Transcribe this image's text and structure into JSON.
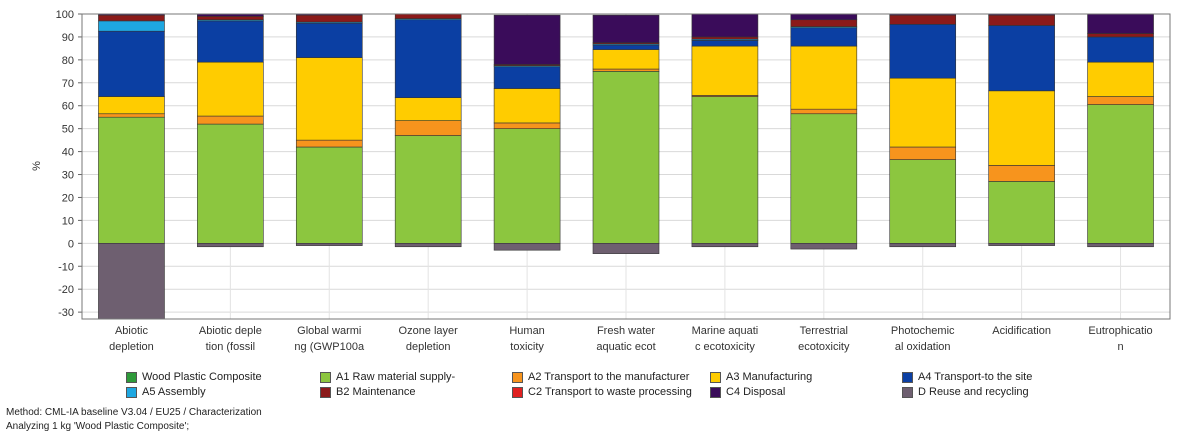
{
  "chart_data": {
    "type": "bar",
    "stacked": true,
    "title": "",
    "xlabel": "",
    "ylabel": "%",
    "ylim": [
      -33,
      100
    ],
    "yticks": [
      -30,
      -20,
      -10,
      0,
      10,
      20,
      30,
      40,
      50,
      60,
      70,
      80,
      90,
      100
    ],
    "grid": true,
    "legend_position": "bottom",
    "categories": [
      [
        "Abiotic",
        "depletion"
      ],
      [
        "Abiotic deple",
        "tion (fossil"
      ],
      [
        "Global warmi",
        "ng (GWP100a"
      ],
      [
        "Ozone layer",
        "depletion"
      ],
      [
        "Human",
        "toxicity"
      ],
      [
        "Fresh water",
        "aquatic ecot"
      ],
      [
        "Marine aquati",
        "c ecotoxicity"
      ],
      [
        "Terrestrial",
        "ecotoxicity"
      ],
      [
        "Photochemic",
        "al oxidation"
      ],
      [
        "Acidification"
      ],
      [
        "Eutrophicatio",
        "n"
      ]
    ],
    "series": [
      {
        "name": "Wood Plastic Composite",
        "color": "#2e9a3a",
        "values": [
          0,
          0,
          0,
          0,
          0,
          0,
          0,
          0,
          0,
          0,
          0
        ]
      },
      {
        "name": "A1 Raw material supply-",
        "color": "#8cc63f",
        "values": [
          55,
          52,
          42,
          47,
          50,
          75,
          64,
          56.5,
          36.5,
          27,
          60.5
        ]
      },
      {
        "name": "A2 Transport to the manufacturer",
        "color": "#f7941d",
        "values": [
          1.5,
          3.5,
          3,
          6.5,
          2.5,
          1,
          0.5,
          2,
          5.5,
          7,
          3.5
        ]
      },
      {
        "name": "A3 Manufacturing",
        "color": "#ffcc00",
        "values": [
          7.5,
          23.5,
          36,
          10,
          15,
          8.5,
          21.5,
          27.5,
          30,
          32.5,
          15
        ]
      },
      {
        "name": "A4 Transport to the site",
        "color": "#0b3fa3",
        "values": [
          28.5,
          18,
          15,
          34,
          9.5,
          2,
          2.5,
          8,
          23.5,
          28.5,
          11
        ]
      },
      {
        "name": "A5 Assembly",
        "color": "#1ea7e1",
        "values": [
          4.5,
          0.5,
          0.5,
          0.5,
          0.5,
          0.5,
          0.5,
          0.5,
          0,
          0,
          0
        ]
      },
      {
        "name": "B2 Maintenance",
        "color": "#8b1a1a",
        "values": [
          2.5,
          1.5,
          3,
          2,
          0.5,
          0.5,
          1,
          3,
          4,
          4.5,
          1.5
        ]
      },
      {
        "name": "C2 Transport to waste processing",
        "color": "#e02020",
        "values": [
          0,
          0,
          0,
          0,
          0,
          0,
          0,
          0,
          0,
          0,
          0
        ]
      },
      {
        "name": "C4 Disposal",
        "color": "#3a0c5a",
        "values": [
          0.5,
          1,
          0.5,
          0,
          21.5,
          12,
          10,
          2.5,
          0.5,
          0.5,
          8.5
        ]
      },
      {
        "name": "D Reuse and recycling",
        "color": "#6e5f70",
        "values": [
          -33,
          -1.5,
          -1,
          -1.5,
          -3,
          -4.5,
          -1.5,
          -2.5,
          -1.5,
          -1,
          -1.5
        ]
      }
    ]
  },
  "legend": {
    "items": [
      {
        "label": "Wood Plastic Composite",
        "color": "#2e9a3a"
      },
      {
        "label": "A1 Raw material supply-",
        "color": "#8cc63f"
      },
      {
        "label": "A2 Transport to the manufacturer",
        "color": "#f7941d"
      },
      {
        "label": "A3 Manufacturing",
        "color": "#ffcc00"
      },
      {
        "label": "A4 Transport-to the site",
        "color": "#0b3fa3"
      },
      {
        "label": "A5 Assembly",
        "color": "#1ea7e1"
      },
      {
        "label": "B2 Maintenance",
        "color": "#8b1a1a"
      },
      {
        "label": "C2 Transport to waste processing",
        "color": "#e02020"
      },
      {
        "label": "C4 Disposal",
        "color": "#3a0c5a"
      },
      {
        "label": "D Reuse and recycling",
        "color": "#6e5f70"
      }
    ]
  },
  "footer": {
    "method": "Method: CML-IA baseline V3.04 / EU25 / Characterization",
    "analyzing": "Analyzing 1 kg 'Wood Plastic Composite';"
  }
}
